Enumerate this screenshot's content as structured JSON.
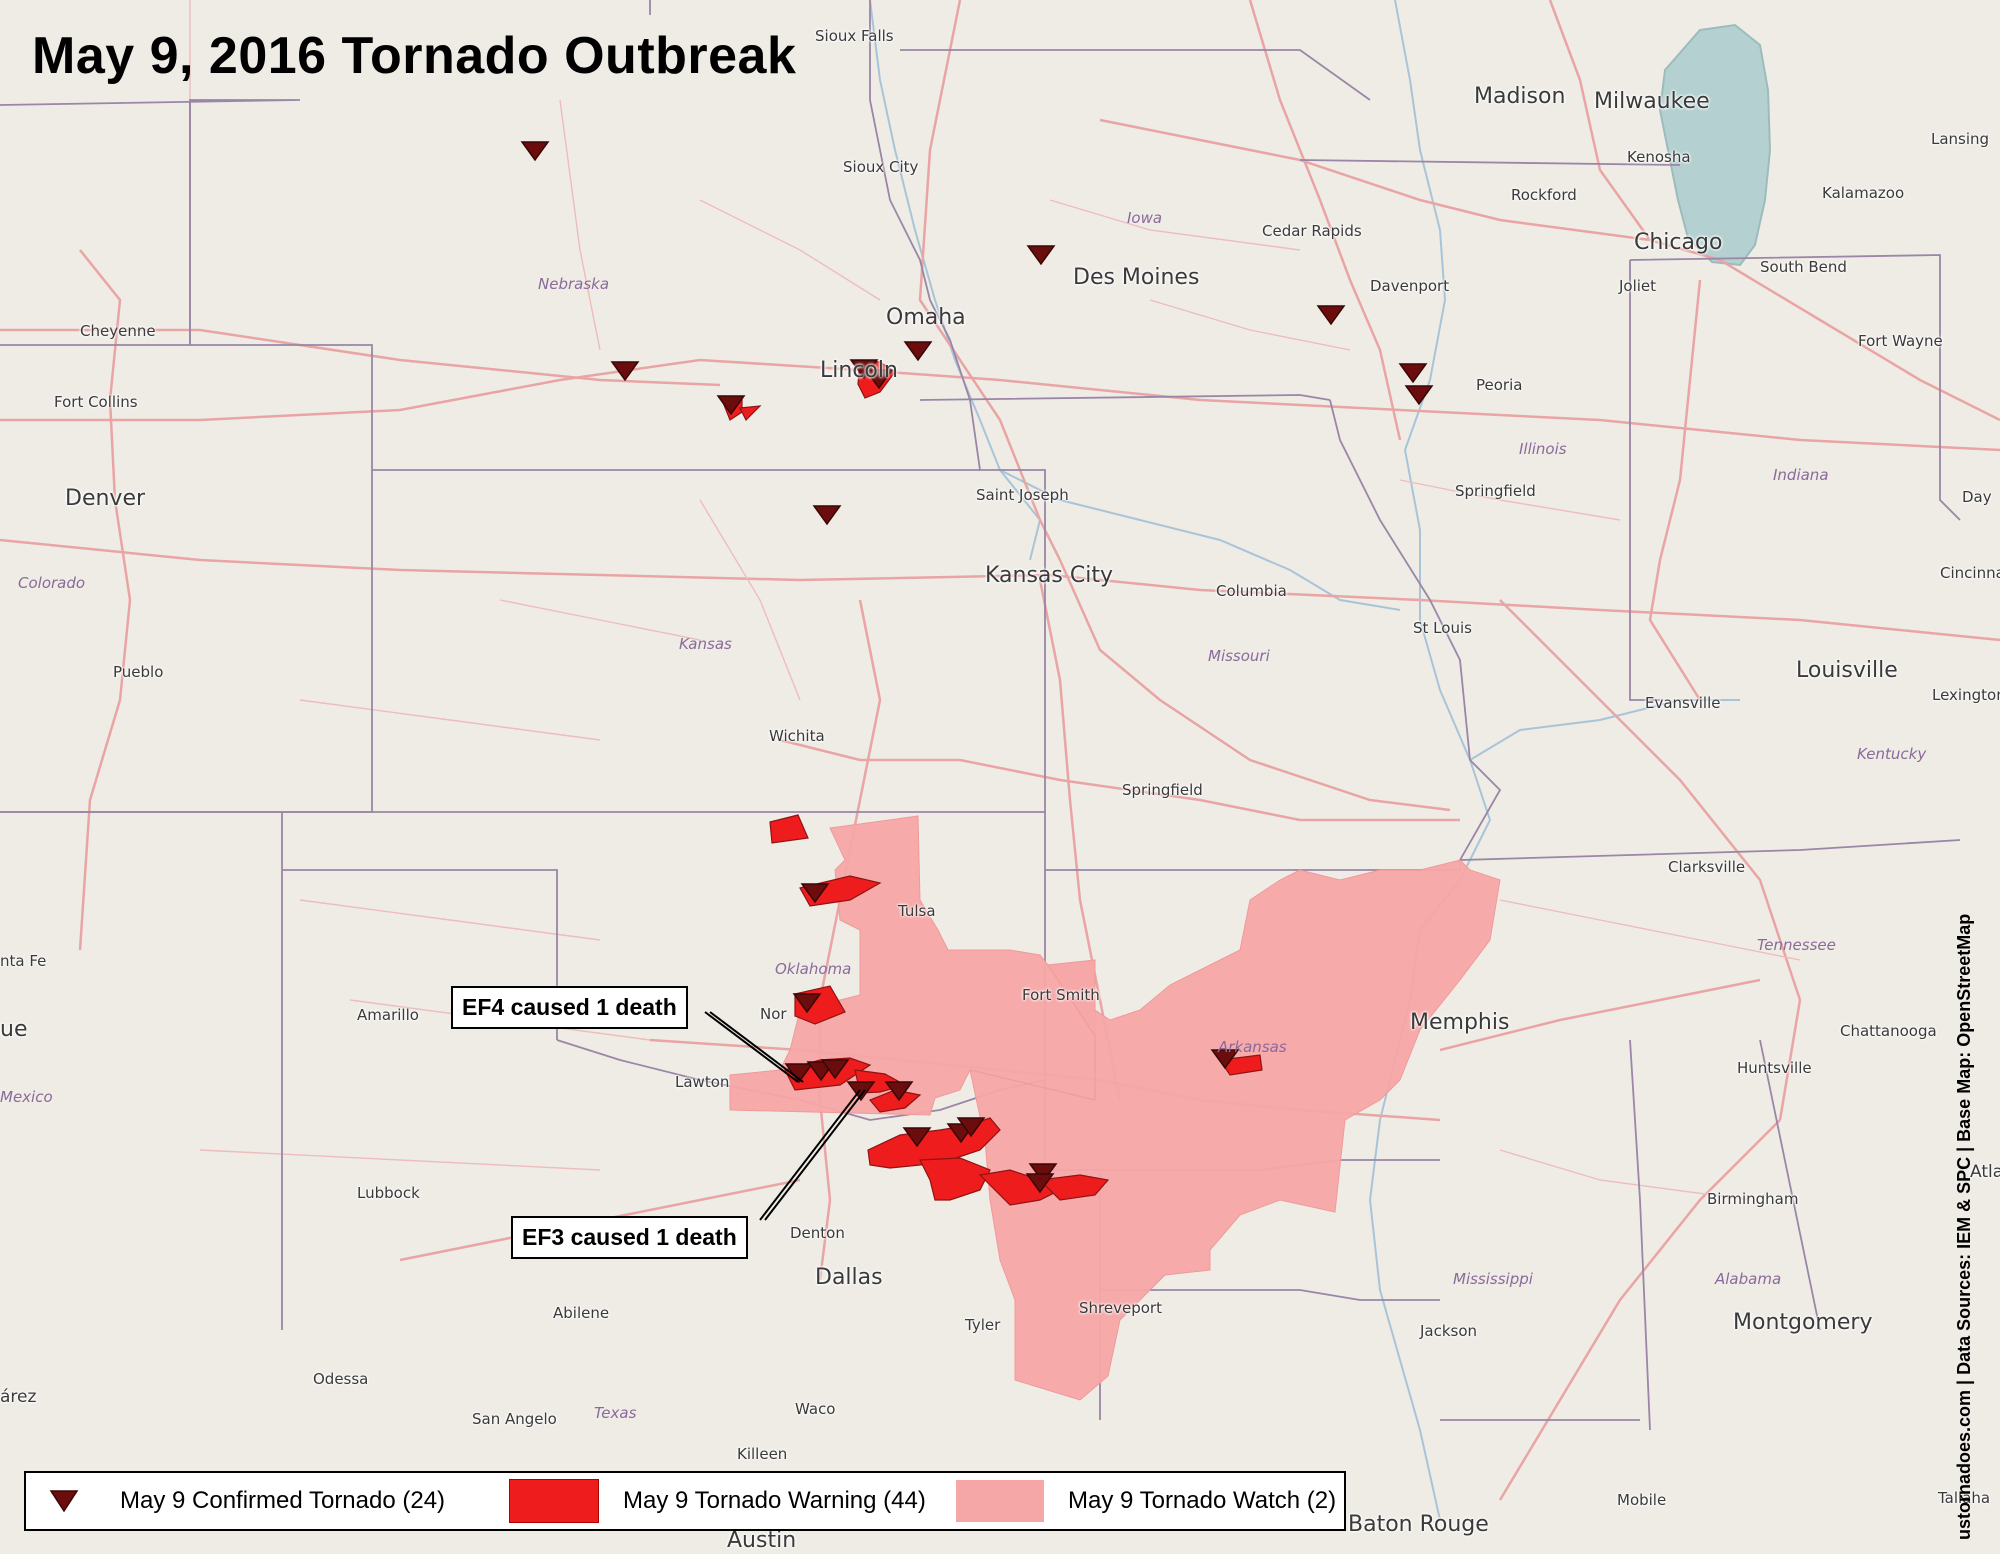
{
  "title": "May 9, 2016 Tornado Outbreak",
  "colors": {
    "watch_fill": "#f5a6a6",
    "warning_fill": "#ee1c1c",
    "tornado_marker": "#6b0d0d",
    "lake": "#b5d0d0",
    "land": "#efece6",
    "roads": "#e9a4a4"
  },
  "cities": [
    {
      "name": "Sioux Falls",
      "size": "sm"
    },
    {
      "name": "Madison",
      "size": "big"
    },
    {
      "name": "Milwaukee",
      "size": "big"
    },
    {
      "name": "Lansing",
      "size": "sm"
    },
    {
      "name": "Kenosha",
      "size": "sm"
    },
    {
      "name": "Sioux City",
      "size": "sm"
    },
    {
      "name": "Rockford",
      "size": "sm"
    },
    {
      "name": "Kalamazoo",
      "size": "sm"
    },
    {
      "name": "Cedar Rapids",
      "size": "sm"
    },
    {
      "name": "Chicago",
      "size": "big"
    },
    {
      "name": "South Bend",
      "size": "sm"
    },
    {
      "name": "Des Moines",
      "size": "big"
    },
    {
      "name": "Davenport",
      "size": "sm"
    },
    {
      "name": "Joliet",
      "size": "sm"
    },
    {
      "name": "Omaha",
      "size": "big"
    },
    {
      "name": "Cheyenne",
      "size": "sm"
    },
    {
      "name": "Fort Wayne",
      "size": "sm"
    },
    {
      "name": "Lincoln",
      "size": "big"
    },
    {
      "name": "Peoria",
      "size": "sm"
    },
    {
      "name": "Fort Collins",
      "size": "sm"
    },
    {
      "name": "Denver",
      "size": "big"
    },
    {
      "name": "Saint Joseph",
      "size": "sm"
    },
    {
      "name": "Springfield",
      "size": "sm"
    },
    {
      "name": "Day",
      "size": "sm"
    },
    {
      "name": "Kansas City",
      "size": "big"
    },
    {
      "name": "Cincinnati",
      "size": "sm"
    },
    {
      "name": "Columbia",
      "size": "sm"
    },
    {
      "name": "St Louis",
      "size": "sm"
    },
    {
      "name": "Louisville",
      "size": "big"
    },
    {
      "name": "Pueblo",
      "size": "sm"
    },
    {
      "name": "Evansville",
      "size": "sm"
    },
    {
      "name": "Lexington",
      "size": "sm"
    },
    {
      "name": "Wichita",
      "size": "sm"
    },
    {
      "name": "Springfield",
      "size": "sm"
    },
    {
      "name": "Clarksville",
      "size": "sm"
    },
    {
      "name": "Tulsa",
      "size": "sm"
    },
    {
      "name": "nta Fe",
      "size": "sm"
    },
    {
      "name": "Fort Smith",
      "size": "sm"
    },
    {
      "name": "Amarillo",
      "size": "sm"
    },
    {
      "name": "Nor",
      "size": "sm"
    },
    {
      "name": "Memphis",
      "size": "big"
    },
    {
      "name": "Chattanooga",
      "size": "sm"
    },
    {
      "name": "ue",
      "size": "big"
    },
    {
      "name": "Lawton",
      "size": "sm"
    },
    {
      "name": "Huntsville",
      "size": "sm"
    },
    {
      "name": "Atlant",
      "size": "med"
    },
    {
      "name": "Lubbock",
      "size": "sm"
    },
    {
      "name": "Birmingham",
      "size": "sm"
    },
    {
      "name": "Denton",
      "size": "sm"
    },
    {
      "name": "Dallas",
      "size": "big"
    },
    {
      "name": "Shreveport",
      "size": "sm"
    },
    {
      "name": "Abilene",
      "size": "sm"
    },
    {
      "name": "Tyler",
      "size": "sm"
    },
    {
      "name": "Jackson",
      "size": "sm"
    },
    {
      "name": "Montgomery",
      "size": "big"
    },
    {
      "name": "Odessa",
      "size": "sm"
    },
    {
      "name": "árez",
      "size": "med"
    },
    {
      "name": "San Angelo",
      "size": "sm"
    },
    {
      "name": "Waco",
      "size": "sm"
    },
    {
      "name": "Killeen",
      "size": "sm"
    },
    {
      "name": "Mobile",
      "size": "sm"
    },
    {
      "name": "Tallaha",
      "size": "sm"
    },
    {
      "name": "Baton Rouge",
      "size": "big"
    },
    {
      "name": "Austin",
      "size": "big"
    }
  ],
  "state_labels": [
    "Iowa",
    "Nebraska",
    "Illinois",
    "Indiana",
    "Colorado",
    "Kansas",
    "Missouri",
    "Kentucky",
    "Oklahoma",
    "Tennessee",
    "Arkansas",
    "Mexico",
    "Mississippi",
    "Alabama",
    "Texas"
  ],
  "callouts": {
    "ef4": "EF4 caused 1 death",
    "ef3": "EF3 caused 1 death"
  },
  "legend": {
    "confirmed": "May 9 Confirmed Tornado (24)",
    "warning": "May 9 Tornado Warning (44)",
    "watch": "May 9 Tornado Watch (2)"
  },
  "credit": "ustornadoes.com | Data Sources: IEM & SPC | Base Map: OpenStreetMap"
}
